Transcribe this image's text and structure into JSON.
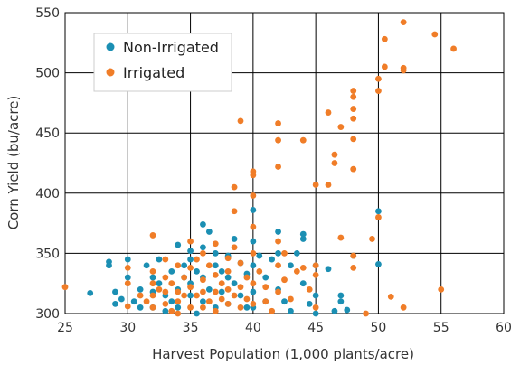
{
  "chart_data": {
    "type": "scatter",
    "xlabel": "Harvest Population (1,000 plants/acre)",
    "ylabel": "Corn Yield (bu/acre)",
    "xlim": [
      25,
      60
    ],
    "ylim": [
      300,
      550
    ],
    "xticks": [
      25,
      30,
      35,
      40,
      45,
      50,
      55,
      60
    ],
    "yticks": [
      300,
      350,
      400,
      450,
      500,
      550
    ],
    "grid": true,
    "legend_position": "top-left",
    "series": [
      {
        "name": "Non-Irrigated",
        "color": "#1b8fb3",
        "points": [
          [
            28.5,
            343
          ],
          [
            28.5,
            340
          ],
          [
            27,
            317
          ],
          [
            29,
            318
          ],
          [
            29.5,
            312
          ],
          [
            29,
            308
          ],
          [
            30,
            345
          ],
          [
            30,
            330
          ],
          [
            30.5,
            310
          ],
          [
            31,
            320
          ],
          [
            31,
            305
          ],
          [
            31.5,
            340
          ],
          [
            32,
            330
          ],
          [
            32,
            318
          ],
          [
            32,
            305
          ],
          [
            32.5,
            345
          ],
          [
            32.5,
            325
          ],
          [
            33,
            315
          ],
          [
            33,
            302
          ],
          [
            33.5,
            335
          ],
          [
            33.5,
            310
          ],
          [
            34,
            357
          ],
          [
            34,
            320
          ],
          [
            34,
            305
          ],
          [
            34.5,
            340
          ],
          [
            34.5,
            330
          ],
          [
            35,
            352
          ],
          [
            35,
            345
          ],
          [
            35,
            325
          ],
          [
            35,
            315
          ],
          [
            35.5,
            300
          ],
          [
            35.5,
            335
          ],
          [
            36,
            374
          ],
          [
            36,
            355
          ],
          [
            36,
            330
          ],
          [
            36,
            310
          ],
          [
            36.5,
            368
          ],
          [
            36.5,
            320
          ],
          [
            37,
            350
          ],
          [
            37,
            340
          ],
          [
            37,
            305
          ],
          [
            37.5,
            335
          ],
          [
            37.5,
            318
          ],
          [
            38,
            348
          ],
          [
            38,
            330
          ],
          [
            38,
            308
          ],
          [
            38.5,
            362
          ],
          [
            38.5,
            325
          ],
          [
            39,
            342
          ],
          [
            39,
            315
          ],
          [
            39.5,
            305
          ],
          [
            39.5,
            333
          ],
          [
            40,
            386
          ],
          [
            40,
            360
          ],
          [
            40,
            340
          ],
          [
            40,
            318
          ],
          [
            40,
            305
          ],
          [
            40.5,
            348
          ],
          [
            41,
            330
          ],
          [
            41,
            310
          ],
          [
            41.5,
            345
          ],
          [
            42,
            368
          ],
          [
            42,
            350
          ],
          [
            42,
            320
          ],
          [
            42.5,
            310
          ],
          [
            43,
            340
          ],
          [
            43,
            302
          ],
          [
            43.5,
            350
          ],
          [
            44,
            366
          ],
          [
            44,
            362
          ],
          [
            44,
            325
          ],
          [
            44.5,
            308
          ],
          [
            45,
            340
          ],
          [
            45,
            315
          ],
          [
            45,
            300
          ],
          [
            46,
            337
          ],
          [
            46.5,
            302
          ],
          [
            47,
            315
          ],
          [
            47,
            310
          ],
          [
            47.5,
            303
          ],
          [
            48,
            348
          ],
          [
            50,
            385
          ],
          [
            50,
            341
          ]
        ]
      },
      {
        "name": "Irrigated",
        "color": "#f07d28",
        "points": [
          [
            25,
            322
          ],
          [
            30,
            338
          ],
          [
            30,
            325
          ],
          [
            30,
            306
          ],
          [
            31,
            315
          ],
          [
            31.5,
            310
          ],
          [
            32,
            365
          ],
          [
            32,
            335
          ],
          [
            32,
            325
          ],
          [
            32,
            315
          ],
          [
            32,
            305
          ],
          [
            32.5,
            320
          ],
          [
            33,
            345
          ],
          [
            33,
            330
          ],
          [
            33,
            318
          ],
          [
            33,
            308
          ],
          [
            33.5,
            325
          ],
          [
            33.5,
            302
          ],
          [
            34,
            340
          ],
          [
            34,
            318
          ],
          [
            34,
            310
          ],
          [
            34,
            300
          ],
          [
            34.5,
            330
          ],
          [
            34.5,
            315
          ],
          [
            35,
            360
          ],
          [
            35,
            338
          ],
          [
            35,
            322
          ],
          [
            35,
            305
          ],
          [
            35.5,
            345
          ],
          [
            35.5,
            315
          ],
          [
            36,
            350
          ],
          [
            36,
            328
          ],
          [
            36,
            318
          ],
          [
            36,
            305
          ],
          [
            36.5,
            340
          ],
          [
            36.5,
            310
          ],
          [
            37,
            358
          ],
          [
            37,
            332
          ],
          [
            37,
            318
          ],
          [
            37,
            302
          ],
          [
            37.5,
            325
          ],
          [
            37.5,
            312
          ],
          [
            38,
            346
          ],
          [
            38,
            335
          ],
          [
            38,
            320
          ],
          [
            38,
            308
          ],
          [
            38.5,
            405
          ],
          [
            38.5,
            385
          ],
          [
            38.5,
            355
          ],
          [
            38.5,
            315
          ],
          [
            39,
            460
          ],
          [
            39,
            342
          ],
          [
            39,
            322
          ],
          [
            39,
            305
          ],
          [
            39.5,
            330
          ],
          [
            39.5,
            312
          ],
          [
            40,
            418
          ],
          [
            40,
            415
          ],
          [
            40,
            398
          ],
          [
            40,
            372
          ],
          [
            40,
            350
          ],
          [
            40,
            325
          ],
          [
            40,
            308
          ],
          [
            40.5,
            335
          ],
          [
            41,
            322
          ],
          [
            41,
            310
          ],
          [
            41.5,
            302
          ],
          [
            42,
            458
          ],
          [
            42,
            444
          ],
          [
            42,
            422
          ],
          [
            42,
            360
          ],
          [
            42,
            340
          ],
          [
            42,
            318
          ],
          [
            42.5,
            350
          ],
          [
            42.5,
            328
          ],
          [
            43,
            312
          ],
          [
            43.5,
            335
          ],
          [
            44,
            444
          ],
          [
            44,
            338
          ],
          [
            44.5,
            320
          ],
          [
            45,
            407
          ],
          [
            45,
            340
          ],
          [
            45,
            332
          ],
          [
            45,
            305
          ],
          [
            46,
            467
          ],
          [
            46,
            407
          ],
          [
            46.5,
            432
          ],
          [
            46.5,
            425
          ],
          [
            47,
            455
          ],
          [
            47,
            363
          ],
          [
            48,
            485
          ],
          [
            48,
            480
          ],
          [
            48,
            470
          ],
          [
            48,
            462
          ],
          [
            48,
            445
          ],
          [
            48,
            420
          ],
          [
            48,
            348
          ],
          [
            48,
            338
          ],
          [
            49,
            300
          ],
          [
            49.5,
            362
          ],
          [
            50,
            495
          ],
          [
            50,
            485
          ],
          [
            50,
            380
          ],
          [
            50.5,
            528
          ],
          [
            50.5,
            505
          ],
          [
            51,
            314
          ],
          [
            52,
            542
          ],
          [
            52,
            504
          ],
          [
            52,
            502
          ],
          [
            52,
            305
          ],
          [
            54.5,
            532
          ],
          [
            55,
            320
          ],
          [
            56,
            520
          ]
        ]
      }
    ]
  }
}
